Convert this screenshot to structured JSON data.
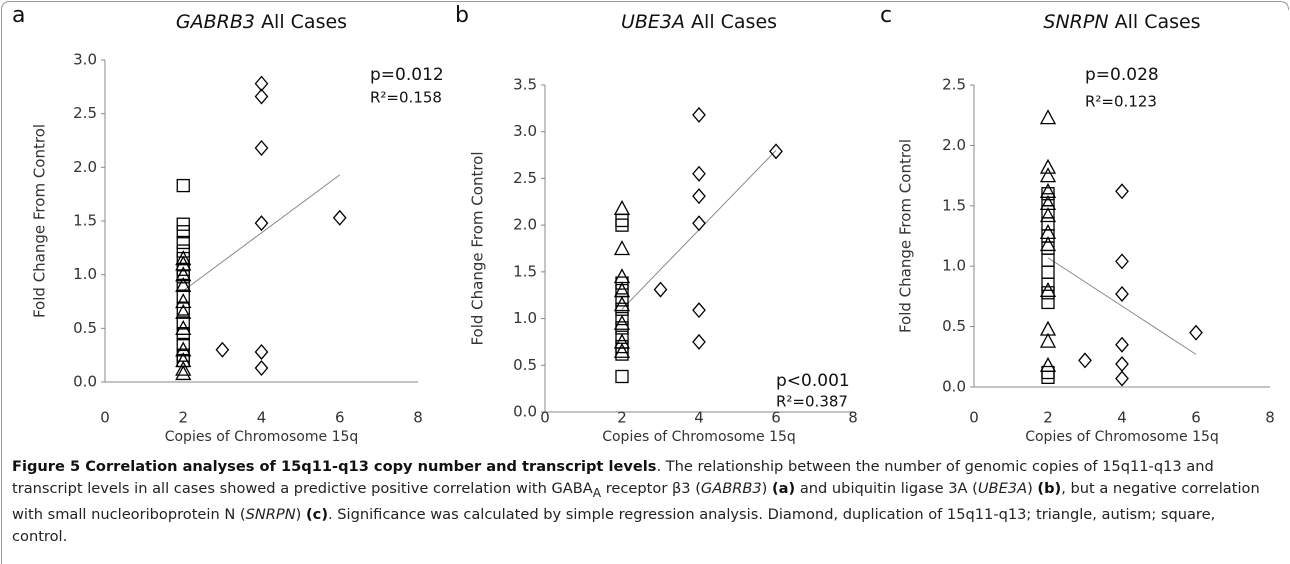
{
  "chart_data": [
    {
      "type": "scatter",
      "label": "a",
      "title": [
        "GABRB3",
        "All Cases"
      ],
      "xlabel": "Copies of Chromosome 15q",
      "ylabel": "Fold Change From Control",
      "xlim": [
        0,
        8
      ],
      "xticks": [
        0,
        2,
        4,
        6,
        8
      ],
      "ylim": [
        0,
        3
      ],
      "yticks": [
        {
          "value": 0,
          "label": "0.0"
        },
        0.5,
        {
          "value": 1,
          "label": "1.0"
        },
        1.5,
        {
          "value": 2,
          "label": "2.0"
        },
        2.5,
        {
          "value": 3,
          "label": "3.0"
        }
      ],
      "annotations": [
        "p=0.012",
        "R²=0.158"
      ],
      "trendline": {
        "x": [
          2,
          6
        ],
        "y": [
          0.85,
          1.93
        ],
        "color": "#888888"
      },
      "series": [
        {
          "marker": "square",
          "color": "#000000",
          "x": [
            2,
            2,
            2,
            2,
            2,
            2,
            2,
            2,
            2,
            2,
            2,
            2,
            2,
            2,
            2,
            2
          ],
          "values": [
            1.83,
            1.47,
            1.4,
            1.3,
            1.22,
            1.15,
            1.05,
            0.98,
            0.9,
            0.8,
            0.68,
            0.55,
            0.45,
            0.35,
            0.25,
            0.2
          ]
        },
        {
          "marker": "triangle",
          "color": "#000000",
          "x": [
            2,
            2,
            2,
            2,
            2,
            2,
            2,
            2,
            2,
            2,
            2
          ],
          "values": [
            1.15,
            1.1,
            1.0,
            0.9,
            0.75,
            0.65,
            0.5,
            0.3,
            0.2,
            0.12,
            0.08
          ]
        },
        {
          "marker": "diamond",
          "color": "#000000",
          "x": [
            3,
            4,
            4,
            4,
            4,
            4,
            4,
            6
          ],
          "values": [
            0.3,
            2.78,
            2.66,
            2.18,
            1.48,
            0.28,
            0.13,
            1.53
          ]
        }
      ]
    },
    {
      "type": "scatter",
      "label": "b",
      "title": [
        "UBE3A",
        "All Cases"
      ],
      "xlabel": "Copies of Chromosome 15q",
      "ylabel": "Fold Change From Control",
      "xlim": [
        0,
        8
      ],
      "xticks": [
        0,
        2,
        4,
        6,
        8
      ],
      "ylim": [
        0,
        3.5
      ],
      "yticks": [
        {
          "value": 0,
          "label": "0.0"
        },
        0.5,
        {
          "value": 1,
          "label": "1.0"
        },
        1.5,
        {
          "value": 2,
          "label": "2.0"
        },
        2.5,
        {
          "value": 3,
          "label": "3.0"
        },
        3.5
      ],
      "annotations": [
        "p<0.001",
        "R²=0.387"
      ],
      "trendline": {
        "x": [
          2,
          6
        ],
        "y": [
          1.1,
          2.8
        ],
        "color": "#888888"
      },
      "series": [
        {
          "marker": "square",
          "color": "#000000",
          "x": [
            2,
            2,
            2,
            2,
            2,
            2,
            2,
            2,
            2,
            2,
            2,
            2
          ],
          "values": [
            2.05,
            2.0,
            1.38,
            1.3,
            1.2,
            1.1,
            1.0,
            0.9,
            0.8,
            0.7,
            0.62,
            0.38
          ]
        },
        {
          "marker": "triangle",
          "color": "#000000",
          "x": [
            2,
            2,
            2,
            2,
            2,
            2,
            2,
            2
          ],
          "values": [
            2.18,
            1.75,
            1.45,
            1.3,
            1.15,
            0.95,
            0.75,
            0.65
          ]
        },
        {
          "marker": "diamond",
          "color": "#000000",
          "x": [
            3,
            4,
            4,
            4,
            4,
            4,
            4,
            6
          ],
          "values": [
            1.31,
            3.18,
            2.55,
            2.31,
            2.02,
            1.09,
            0.75,
            2.79
          ]
        }
      ]
    },
    {
      "type": "scatter",
      "label": "c",
      "title": [
        "SNRPN",
        "All Cases"
      ],
      "xlabel": "Copies of Chromosome 15q",
      "ylabel": "Fold Change From Control",
      "xlim": [
        0,
        8
      ],
      "xticks": [
        0,
        2,
        4,
        6,
        8
      ],
      "ylim": [
        0,
        2.5
      ],
      "yticks": [
        {
          "value": 0,
          "label": "0.0"
        },
        0.5,
        {
          "value": 1,
          "label": "1.0"
        },
        1.5,
        {
          "value": 2,
          "label": "2.0"
        },
        2.5
      ],
      "annotations": [
        "p=0.028",
        "R²=0.123"
      ],
      "trendline": {
        "x": [
          2,
          6
        ],
        "y": [
          1.07,
          0.27
        ],
        "color": "#888888"
      },
      "series": [
        {
          "marker": "square",
          "color": "#000000",
          "x": [
            2,
            2,
            2,
            2,
            2,
            2,
            2,
            2,
            2,
            2,
            2,
            2,
            2
          ],
          "values": [
            1.6,
            1.55,
            1.45,
            1.35,
            1.25,
            1.15,
            1.05,
            0.95,
            0.85,
            0.78,
            0.7,
            0.12,
            0.08
          ]
        },
        {
          "marker": "triangle",
          "color": "#000000",
          "x": [
            2,
            2,
            2,
            2,
            2,
            2,
            2,
            2,
            2,
            2,
            2,
            2
          ],
          "values": [
            2.23,
            1.82,
            1.75,
            1.62,
            1.52,
            1.42,
            1.28,
            1.18,
            0.8,
            0.48,
            0.38,
            0.18
          ]
        },
        {
          "marker": "diamond",
          "color": "#000000",
          "x": [
            3,
            4,
            4,
            4,
            4,
            4,
            4,
            6
          ],
          "values": [
            0.22,
            1.62,
            1.04,
            0.77,
            0.35,
            0.19,
            0.07,
            0.45
          ]
        }
      ]
    }
  ],
  "caption": {
    "parts": [
      "Figure 5 Correlation analyses of 15q11-q13 copy number and transcript levels",
      ". The relationship between the number of genomic copies of 15q11-q13 and transcript levels in all cases showed a predictive positive correlation with GABA",
      "A",
      " receptor β3 (",
      "GABRB3",
      ") ",
      "(a)",
      " and ubiquitin ligase 3A (",
      "UBE3A",
      ") ",
      "(b)",
      ", but a negative correlation with small nucleoriboprotein N (",
      "SNRPN",
      ") ",
      "(c)",
      ". Significance was calculated by simple regression analysis. Diamond, duplication of 15q11-q13; triangle, autism; square, control."
    ]
  }
}
